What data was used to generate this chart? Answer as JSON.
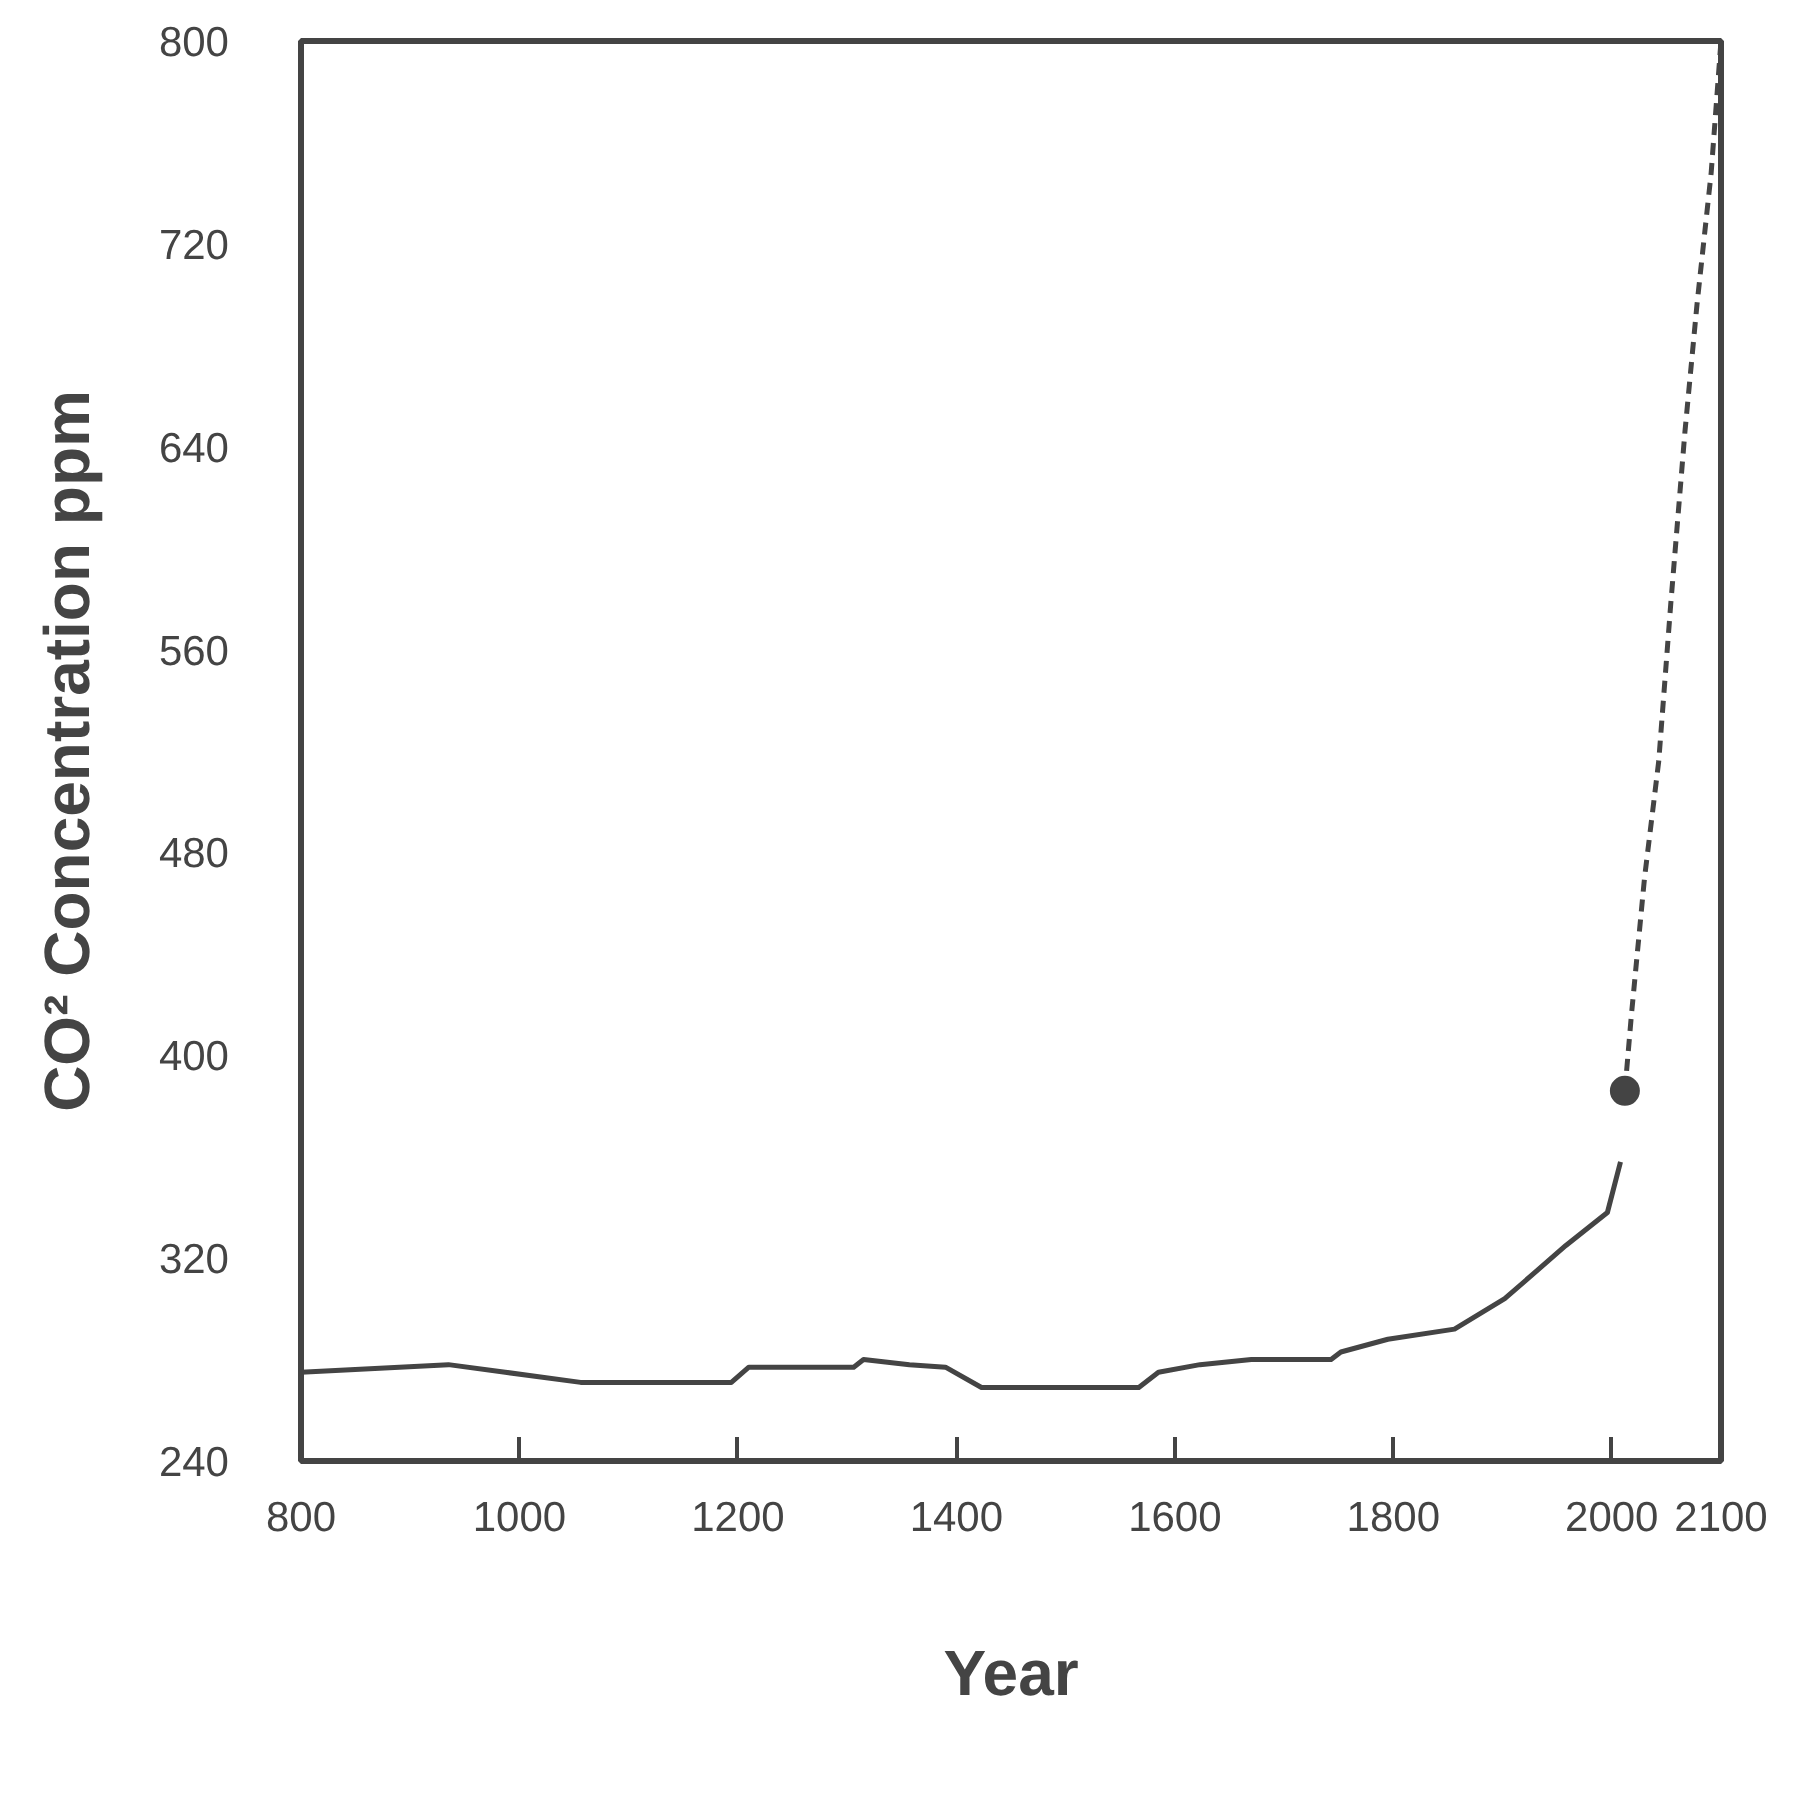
{
  "chart_data": {
    "type": "line",
    "xlabel": "Year",
    "ylabel": "CO² Concentration ppm",
    "xlim": [
      800,
      2100
    ],
    "ylim": [
      240,
      800
    ],
    "xticks": [
      800,
      1000,
      1200,
      1400,
      1600,
      1800,
      2000,
      2100
    ],
    "yticks": [
      240,
      320,
      400,
      480,
      560,
      640,
      720,
      800
    ],
    "grid": false,
    "series": [
      {
        "color": "#444444",
        "line_style": "solid",
        "x": [
          800,
          935,
          987,
          1056,
          1194,
          1210,
          1306,
          1315,
          1357,
          1390,
          1423,
          1567,
          1585,
          1623,
          1670,
          1743,
          1752,
          1795,
          1856,
          1902,
          1958,
          1996,
          2008
        ],
        "values": [
          275,
          278,
          275,
          271,
          271,
          277,
          277,
          280,
          278,
          277,
          269,
          269,
          275,
          278,
          280,
          280,
          283,
          288,
          292,
          304,
          325,
          338,
          358
        ]
      },
      {
        "color": "#444444",
        "line_style": "dashed",
        "x": [
          2012,
          2018,
          2030,
          2043,
          2054,
          2067,
          2078,
          2091,
          2100
        ],
        "values": [
          386,
          416,
          470,
          516,
          578,
          646,
          696,
          748,
          800
        ]
      },
      {
        "type": "scatter",
        "color": "#444444",
        "marker": "circle",
        "x": [
          2012
        ],
        "values": [
          386
        ]
      }
    ]
  }
}
